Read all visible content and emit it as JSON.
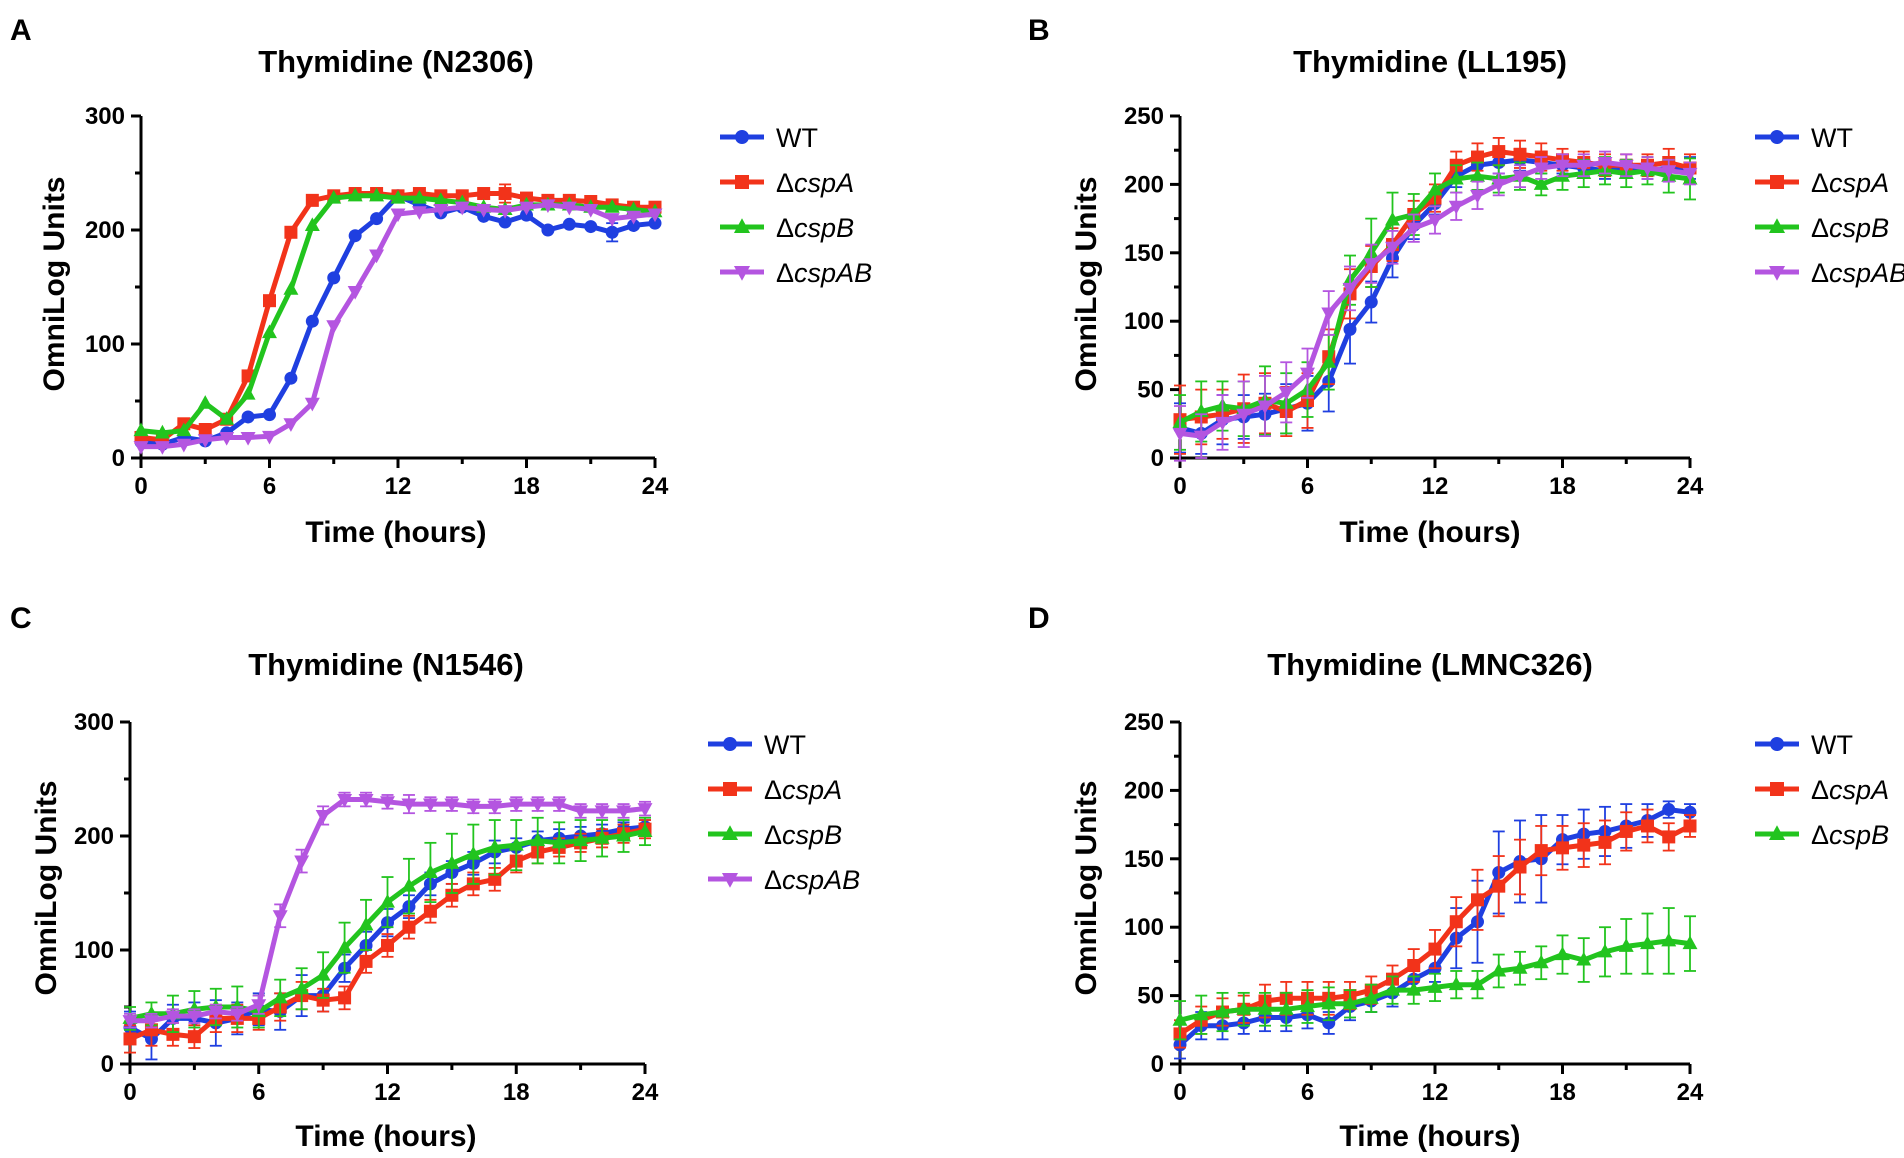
{
  "figure": {
    "panels": [
      "A",
      "B",
      "C",
      "D"
    ]
  },
  "chart_data": [
    {
      "panel": "A",
      "type": "line",
      "title": "Thymidine (N2306)",
      "xlabel": "Time (hours)",
      "ylabel": "OmniLog Units",
      "xlim": [
        0,
        24
      ],
      "ylim": [
        0,
        300
      ],
      "xticks": [
        0,
        6,
        12,
        18,
        24
      ],
      "yticks": [
        0,
        100,
        200,
        300
      ],
      "legend_position": "right",
      "x": [
        0,
        1,
        2,
        3,
        4,
        5,
        6,
        7,
        8,
        9,
        10,
        11,
        12,
        13,
        14,
        15,
        16,
        17,
        18,
        19,
        20,
        21,
        22,
        23,
        24
      ],
      "series": [
        {
          "name": "WT",
          "prefix": "",
          "italic": "",
          "color": "#1f3fe0",
          "marker": "circle",
          "values": [
            14,
            12,
            18,
            15,
            22,
            36,
            38,
            70,
            120,
            158,
            195,
            210,
            230,
            222,
            215,
            220,
            212,
            207,
            213,
            200,
            205,
            203,
            198,
            204,
            206
          ],
          "errors": [
            0,
            0,
            0,
            0,
            0,
            0,
            0,
            0,
            0,
            0,
            0,
            0,
            0,
            0,
            0,
            0,
            0,
            0,
            0,
            0,
            0,
            0,
            8,
            0,
            0
          ]
        },
        {
          "name": "ΔcspA",
          "prefix": "Δ",
          "italic": "cspA",
          "color": "#f2331a",
          "marker": "square",
          "values": [
            18,
            16,
            30,
            25,
            34,
            72,
            138,
            198,
            226,
            230,
            232,
            232,
            230,
            232,
            230,
            230,
            232,
            232,
            228,
            226,
            226,
            225,
            222,
            220,
            220
          ],
          "errors": [
            0,
            0,
            0,
            0,
            0,
            0,
            0,
            0,
            0,
            0,
            0,
            0,
            0,
            0,
            0,
            0,
            0,
            8,
            0,
            0,
            0,
            0,
            0,
            0,
            0
          ]
        },
        {
          "name": "ΔcspB",
          "prefix": "Δ",
          "italic": "cspB",
          "color": "#22c41e",
          "marker": "triangle",
          "values": [
            24,
            22,
            24,
            48,
            34,
            56,
            110,
            148,
            204,
            228,
            230,
            230,
            228,
            228,
            226,
            224,
            220,
            218,
            222,
            222,
            222,
            220,
            220,
            218,
            216
          ],
          "errors": [
            0,
            0,
            0,
            0,
            0,
            0,
            0,
            0,
            0,
            0,
            0,
            0,
            0,
            0,
            0,
            0,
            0,
            0,
            0,
            0,
            0,
            0,
            0,
            0,
            0
          ]
        },
        {
          "name": "ΔcspAB",
          "prefix": "Δ",
          "italic": "cspAB",
          "color": "#b455e0",
          "marker": "triangle-down",
          "values": [
            10,
            10,
            12,
            16,
            18,
            18,
            19,
            30,
            48,
            116,
            146,
            178,
            214,
            216,
            218,
            220,
            218,
            217,
            220,
            222,
            220,
            218,
            210,
            212,
            214
          ],
          "errors": [
            0,
            0,
            0,
            0,
            0,
            0,
            0,
            0,
            0,
            0,
            0,
            0,
            0,
            0,
            0,
            0,
            0,
            0,
            0,
            0,
            0,
            0,
            0,
            0,
            0
          ]
        }
      ]
    },
    {
      "panel": "B",
      "type": "line",
      "title": "Thymidine (LL195)",
      "xlabel": "Time (hours)",
      "ylabel": "OmniLog Units",
      "xlim": [
        0,
        24
      ],
      "ylim": [
        0,
        250
      ],
      "xticks": [
        0,
        6,
        12,
        18,
        24
      ],
      "yticks": [
        0,
        50,
        100,
        150,
        200,
        250
      ],
      "legend_position": "right",
      "x": [
        0,
        1,
        2,
        3,
        4,
        5,
        6,
        7,
        8,
        9,
        10,
        11,
        12,
        13,
        14,
        15,
        16,
        17,
        18,
        19,
        20,
        21,
        22,
        23,
        24
      ],
      "series": [
        {
          "name": "WT",
          "prefix": "",
          "italic": "",
          "color": "#1f3fe0",
          "marker": "circle",
          "values": [
            22,
            18,
            28,
            30,
            32,
            36,
            40,
            56,
            94,
            114,
            146,
            170,
            186,
            206,
            214,
            216,
            218,
            216,
            214,
            212,
            210,
            212,
            210,
            212,
            212
          ],
          "errors": [
            18,
            15,
            18,
            16,
            15,
            18,
            20,
            22,
            25,
            15,
            14,
            10,
            8,
            8,
            8,
            8,
            8,
            8,
            6,
            6,
            6,
            6,
            6,
            8,
            8
          ]
        },
        {
          "name": "ΔcspA",
          "prefix": "Δ",
          "italic": "cspA",
          "color": "#f2331a",
          "marker": "square",
          "values": [
            28,
            30,
            32,
            36,
            40,
            34,
            42,
            74,
            120,
            140,
            156,
            178,
            190,
            214,
            220,
            224,
            222,
            220,
            218,
            216,
            214,
            214,
            214,
            216,
            212
          ],
          "errors": [
            25,
            20,
            18,
            25,
            22,
            18,
            20,
            20,
            18,
            15,
            12,
            10,
            10,
            10,
            10,
            10,
            10,
            10,
            8,
            8,
            8,
            8,
            8,
            10,
            10
          ]
        },
        {
          "name": "ΔcspB",
          "prefix": "Δ",
          "italic": "cspB",
          "color": "#22c41e",
          "marker": "triangle",
          "values": [
            26,
            34,
            38,
            36,
            42,
            40,
            50,
            70,
            130,
            150,
            174,
            178,
            196,
            204,
            206,
            204,
            206,
            200,
            206,
            208,
            210,
            208,
            210,
            206,
            204
          ],
          "errors": [
            20,
            22,
            18,
            20,
            25,
            22,
            20,
            20,
            18,
            25,
            20,
            15,
            12,
            10,
            10,
            10,
            10,
            8,
            10,
            10,
            10,
            10,
            10,
            12,
            15
          ]
        },
        {
          "name": "ΔcspAB",
          "prefix": "Δ",
          "italic": "cspAB",
          "color": "#b455e0",
          "marker": "triangle-down",
          "values": [
            18,
            16,
            26,
            32,
            38,
            48,
            62,
            106,
            124,
            142,
            154,
            168,
            174,
            184,
            192,
            200,
            206,
            212,
            214,
            214,
            216,
            214,
            212,
            210,
            208
          ],
          "errors": [
            20,
            16,
            20,
            24,
            22,
            22,
            18,
            16,
            16,
            14,
            12,
            10,
            10,
            10,
            10,
            8,
            8,
            8,
            8,
            8,
            8,
            8,
            8,
            8,
            8
          ]
        }
      ]
    },
    {
      "panel": "C",
      "type": "line",
      "title": "Thymidine (N1546)",
      "xlabel": "Time (hours)",
      "ylabel": "OmniLog Units",
      "xlim": [
        0,
        24
      ],
      "ylim": [
        0,
        300
      ],
      "xticks": [
        0,
        6,
        12,
        18,
        24
      ],
      "yticks": [
        0,
        100,
        200,
        300
      ],
      "legend_position": "right",
      "x": [
        0,
        1,
        2,
        3,
        4,
        5,
        6,
        7,
        8,
        9,
        10,
        11,
        12,
        13,
        14,
        15,
        16,
        17,
        18,
        19,
        20,
        21,
        22,
        23,
        24
      ],
      "series": [
        {
          "name": "WT",
          "prefix": "",
          "italic": "",
          "color": "#1f3fe0",
          "marker": "circle",
          "values": [
            32,
            22,
            40,
            40,
            36,
            40,
            48,
            46,
            60,
            60,
            84,
            104,
            124,
            138,
            158,
            168,
            176,
            186,
            190,
            196,
            198,
            200,
            202,
            206,
            208
          ],
          "errors": [
            14,
            18,
            12,
            14,
            20,
            14,
            14,
            16,
            18,
            14,
            12,
            12,
            12,
            10,
            10,
            10,
            10,
            10,
            8,
            8,
            8,
            8,
            8,
            6,
            6
          ]
        },
        {
          "name": "ΔcspA",
          "prefix": "Δ",
          "italic": "cspA",
          "color": "#f2331a",
          "marker": "square",
          "values": [
            22,
            30,
            26,
            24,
            40,
            40,
            40,
            50,
            60,
            56,
            58,
            90,
            104,
            120,
            134,
            148,
            158,
            162,
            178,
            186,
            190,
            194,
            198,
            202,
            206
          ],
          "errors": [
            12,
            14,
            10,
            10,
            12,
            12,
            10,
            12,
            12,
            10,
            10,
            10,
            10,
            10,
            10,
            10,
            10,
            10,
            10,
            10,
            8,
            8,
            8,
            8,
            8
          ]
        },
        {
          "name": "ΔcspB",
          "prefix": "Δ",
          "italic": "cspB",
          "color": "#22c41e",
          "marker": "triangle",
          "values": [
            40,
            44,
            44,
            48,
            50,
            50,
            46,
            58,
            66,
            78,
            102,
            122,
            142,
            156,
            168,
            176,
            184,
            190,
            192,
            196,
            194,
            196,
            198,
            200,
            204
          ],
          "errors": [
            10,
            10,
            16,
            16,
            16,
            18,
            14,
            16,
            18,
            20,
            22,
            22,
            22,
            24,
            26,
            26,
            26,
            24,
            22,
            20,
            18,
            18,
            16,
            14,
            12
          ]
        },
        {
          "name": "ΔcspAB",
          "prefix": "Δ",
          "italic": "cspAB",
          "color": "#b455e0",
          "marker": "triangle-down",
          "values": [
            38,
            38,
            42,
            42,
            46,
            44,
            52,
            130,
            178,
            218,
            232,
            232,
            230,
            228,
            228,
            228,
            226,
            226,
            228,
            228,
            228,
            222,
            222,
            222,
            224
          ],
          "errors": [
            6,
            6,
            6,
            6,
            6,
            6,
            8,
            10,
            10,
            8,
            6,
            6,
            6,
            8,
            6,
            6,
            6,
            6,
            6,
            6,
            6,
            6,
            6,
            6,
            6
          ]
        }
      ]
    },
    {
      "panel": "D",
      "type": "line",
      "title": "Thymidine (LMNC326)",
      "xlabel": "Time (hours)",
      "ylabel": "OmniLog Units",
      "xlim": [
        0,
        24
      ],
      "ylim": [
        0,
        250
      ],
      "xticks": [
        0,
        6,
        12,
        18,
        24
      ],
      "yticks": [
        0,
        50,
        100,
        150,
        200,
        250
      ],
      "legend_position": "right",
      "x": [
        0,
        1,
        2,
        3,
        4,
        5,
        6,
        7,
        8,
        9,
        10,
        11,
        12,
        13,
        14,
        15,
        16,
        17,
        18,
        19,
        20,
        21,
        22,
        23,
        24
      ],
      "series": [
        {
          "name": "WT",
          "prefix": "",
          "italic": "",
          "color": "#1f3fe0",
          "marker": "circle",
          "values": [
            14,
            28,
            28,
            30,
            34,
            34,
            36,
            30,
            42,
            46,
            52,
            62,
            70,
            92,
            104,
            140,
            148,
            150,
            164,
            168,
            170,
            174,
            178,
            186,
            184
          ],
          "errors": [
            10,
            10,
            10,
            8,
            10,
            10,
            10,
            8,
            10,
            8,
            10,
            10,
            10,
            22,
            30,
            30,
            30,
            32,
            18,
            18,
            18,
            16,
            12,
            6,
            6
          ]
        },
        {
          "name": "ΔcspA",
          "prefix": "Δ",
          "italic": "cspA",
          "color": "#f2331a",
          "marker": "square",
          "values": [
            22,
            32,
            38,
            40,
            46,
            48,
            48,
            48,
            50,
            54,
            62,
            72,
            84,
            104,
            120,
            130,
            144,
            156,
            158,
            160,
            162,
            170,
            174,
            166,
            174
          ],
          "errors": [
            10,
            10,
            10,
            10,
            12,
            12,
            12,
            12,
            10,
            10,
            10,
            12,
            14,
            18,
            22,
            22,
            20,
            18,
            16,
            16,
            16,
            14,
            12,
            10,
            8
          ]
        },
        {
          "name": "ΔcspB",
          "prefix": "Δ",
          "italic": "cspB",
          "color": "#22c41e",
          "marker": "triangle",
          "values": [
            32,
            36,
            38,
            40,
            40,
            40,
            42,
            44,
            44,
            48,
            54,
            54,
            56,
            58,
            58,
            68,
            70,
            74,
            80,
            76,
            82,
            86,
            88,
            90,
            88
          ],
          "errors": [
            14,
            14,
            14,
            12,
            12,
            12,
            12,
            12,
            10,
            10,
            10,
            10,
            10,
            10,
            10,
            12,
            12,
            12,
            14,
            16,
            18,
            20,
            22,
            24,
            20
          ]
        }
      ]
    }
  ]
}
